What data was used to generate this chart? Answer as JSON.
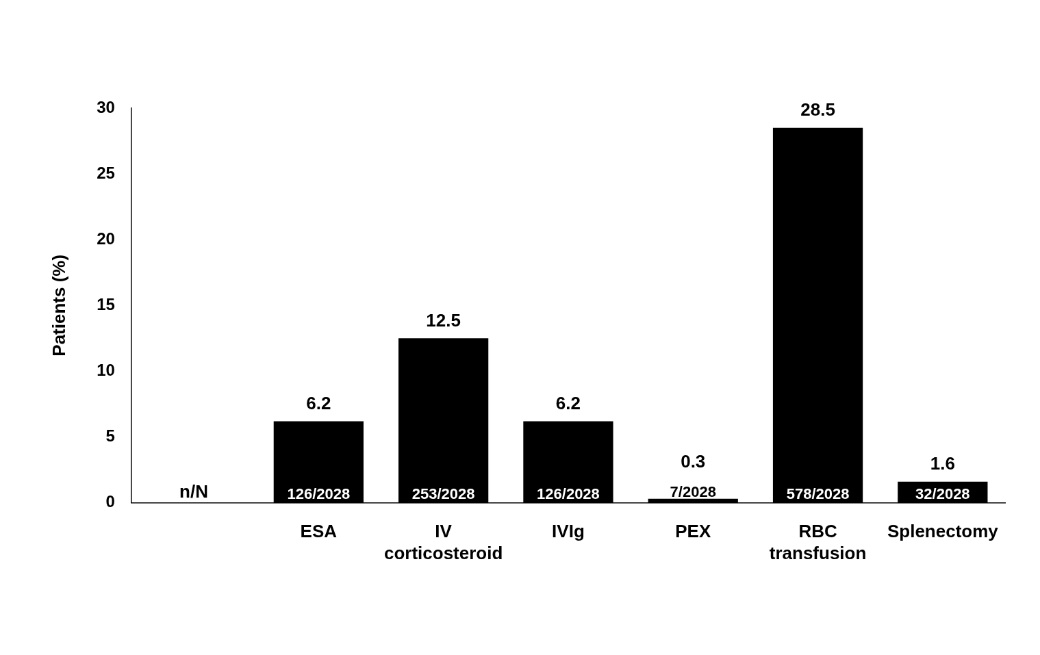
{
  "chart_data": {
    "type": "bar",
    "ylabel": "Patients (%)",
    "categories": [
      null,
      "ESA",
      "IV corticosteroid",
      "IVIg",
      "PEX",
      "RBC transfusion",
      "Splenectomy"
    ],
    "values": [
      null,
      6.2,
      12.5,
      6.2,
      0.3,
      28.5,
      1.6
    ],
    "color": "#000000",
    "ylim": [
      0,
      30
    ],
    "yticks": [
      0,
      5,
      10,
      15,
      20,
      25,
      30
    ],
    "grid": false,
    "legend": false,
    "data_labels": true,
    "annotations": [
      "n/N",
      {
        "text": "126/2028",
        "x": "ESA",
        "y": 0
      },
      {
        "text": "253/2028",
        "x": "IV corticosteroid",
        "y": 0
      },
      {
        "text": "126/2028",
        "x": "IVIg",
        "y": 0
      },
      {
        "text": "7/2028",
        "x": "PEX",
        "y": 0
      },
      {
        "text": "578/2028",
        "x": "RBC transfusion",
        "y": 0
      },
      {
        "text": "32/2028",
        "x": "Splenectomy",
        "y": 0
      }
    ]
  }
}
